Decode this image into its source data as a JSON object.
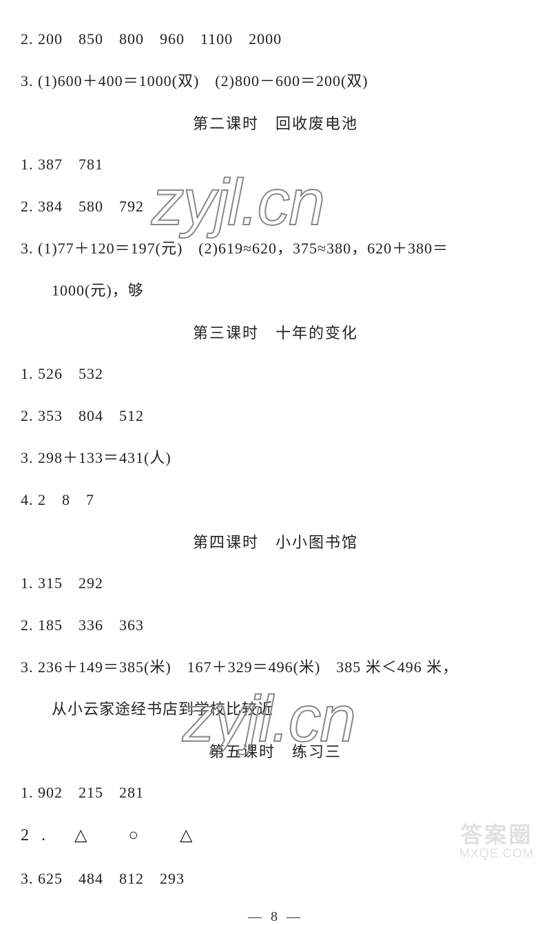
{
  "lines": {
    "l1": "2. 200　850　800　960　1100　2000",
    "l2": "3. (1)600＋400＝1000(双)　(2)800－600＝200(双)",
    "t1": "第二课时　回收废电池",
    "l3": "1. 387　781",
    "l4": "2. 384　580　792",
    "l5": "3. (1)77＋120＝197(元)　(2)619≈620，375≈380，620＋380＝",
    "l5b": "1000(元)，够",
    "t2": "第三课时　十年的变化",
    "l6": "1. 526　532",
    "l7": "2. 353　804　512",
    "l8": "3. 298＋133＝431(人)",
    "l9": "4. 2　8　7",
    "t3": "第四课时　小小图书馆",
    "l10": "1. 315　292",
    "l11": "2. 185　336　363",
    "l12": "3. 236＋149＝385(米)　167＋329＝496(米)　385 米＜496 米，",
    "l12b": "从小云家途经书店到学校比较近",
    "t4": "第五课时　练习三",
    "l13": "1. 902　215　281",
    "l14": "2. △　○　△",
    "l15": "3. 625　484　812　293"
  },
  "watermarks": {
    "wm1": "zyjl.cn",
    "wm2": "zyjl.cn",
    "bottom_cn": "答案圈",
    "bottom_url": "MXQE.COM"
  },
  "page_number": "— 8 —",
  "colors": {
    "text": "#222222",
    "background": "#ffffff",
    "watermark_stroke": "#888888",
    "bottom_watermark": "#cccccc"
  },
  "typography": {
    "body_fontsize": 22,
    "title_fontsize": 22,
    "watermark_fontsize": 95,
    "font_family": "SimSun"
  }
}
